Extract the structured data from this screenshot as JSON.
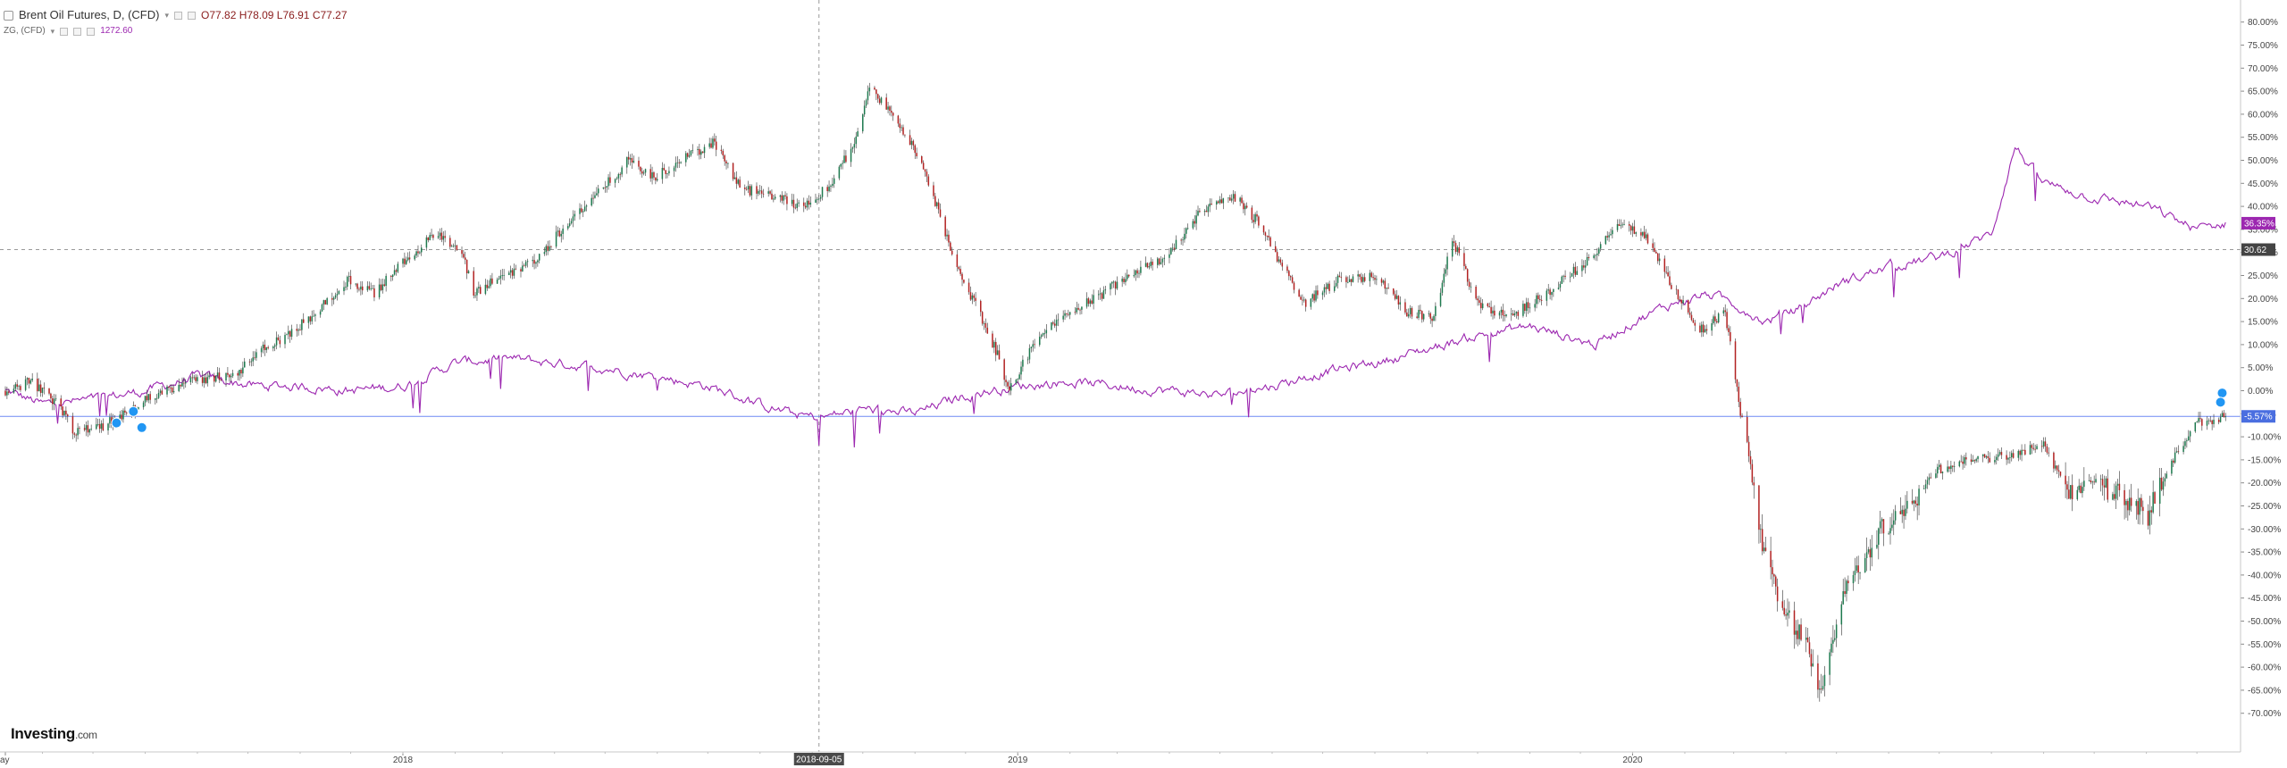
{
  "legend": {
    "instrument": "Brent Oil Futures, D, (CFD)",
    "open_label": "O",
    "open": "77.82",
    "high_label": "H",
    "high": "78.09",
    "low_label": "L",
    "low": "76.91",
    "close_label": "C",
    "close": "77.27",
    "overlay_name": "ZG, (CFD)",
    "overlay_value": "1272.60"
  },
  "logo": {
    "brand": "Investing",
    "domain": ".com"
  },
  "colors": {
    "up": "#26a69a",
    "up_dark": "#1f7a4f",
    "down": "#b22222",
    "overlay": "#9c27b0",
    "price_line": "#4b6cf0",
    "crosshair_label_bg": "#4a4a4a",
    "badge_overlay": "#9c27b0",
    "badge_price": "#4a6ee0",
    "badge_crosshair": "#444444"
  },
  "chart_data": {
    "type": "line",
    "y_unit": "%",
    "ylim": [
      -75,
      85
    ],
    "y_ticks": [
      "80.00%",
      "75.00%",
      "70.00%",
      "65.00%",
      "60.00%",
      "55.00%",
      "50.00%",
      "45.00%",
      "40.00%",
      "35.00%",
      "30.00%",
      "25.00%",
      "20.00%",
      "15.00%",
      "10.00%",
      "5.00%",
      "0.00%",
      "-5.00%",
      "-10.00%",
      "-15.00%",
      "-20.00%",
      "-25.00%",
      "-30.00%",
      "-35.00%",
      "-40.00%",
      "-45.00%",
      "-50.00%",
      "-55.00%",
      "-60.00%",
      "-65.00%",
      "-70.00%"
    ],
    "x_ticks": [
      "ay",
      "2018",
      "2019",
      "2020"
    ],
    "x_tick_dates": [
      "2017-05-10",
      "2018-01-01",
      "2019-01-01",
      "2020-01-01"
    ],
    "x_range": [
      "2017-05-10",
      "2020-12-20"
    ],
    "series": [
      {
        "name": "Brent Oil Futures, D, (CFD)",
        "style": "candlestick",
        "points": [
          [
            "2017-05-10",
            0
          ],
          [
            "2017-05-25",
            2
          ],
          [
            "2017-06-10",
            -3
          ],
          [
            "2017-06-20",
            -9
          ],
          [
            "2017-07-05",
            -8
          ],
          [
            "2017-07-20",
            -5
          ],
          [
            "2017-08-10",
            0
          ],
          [
            "2017-08-30",
            2
          ],
          [
            "2017-09-25",
            4
          ],
          [
            "2017-10-10",
            9
          ],
          [
            "2017-10-25",
            12
          ],
          [
            "2017-11-10",
            17
          ],
          [
            "2017-11-30",
            24
          ],
          [
            "2017-12-15",
            21
          ],
          [
            "2018-01-01",
            28
          ],
          [
            "2018-01-20",
            34
          ],
          [
            "2018-02-05",
            30
          ],
          [
            "2018-02-12",
            21
          ],
          [
            "2018-03-01",
            25
          ],
          [
            "2018-03-20",
            28
          ],
          [
            "2018-04-10",
            37
          ],
          [
            "2018-04-25",
            42
          ],
          [
            "2018-05-15",
            50
          ],
          [
            "2018-05-30",
            46
          ],
          [
            "2018-06-15",
            50
          ],
          [
            "2018-07-05",
            54
          ],
          [
            "2018-07-20",
            44
          ],
          [
            "2018-08-10",
            42
          ],
          [
            "2018-08-25",
            40
          ],
          [
            "2018-09-10",
            44
          ],
          [
            "2018-09-25",
            53
          ],
          [
            "2018-10-05",
            66
          ],
          [
            "2018-10-20",
            59
          ],
          [
            "2018-11-05",
            50
          ],
          [
            "2018-11-20",
            33
          ],
          [
            "2018-12-05",
            20
          ],
          [
            "2018-12-20",
            8
          ],
          [
            "2018-12-27",
            0
          ],
          [
            "2019-01-10",
            10
          ],
          [
            "2019-01-30",
            17
          ],
          [
            "2019-02-20",
            21
          ],
          [
            "2019-03-10",
            26
          ],
          [
            "2019-03-30",
            29
          ],
          [
            "2019-04-20",
            39
          ],
          [
            "2019-05-10",
            42
          ],
          [
            "2019-05-25",
            36
          ],
          [
            "2019-06-10",
            25
          ],
          [
            "2019-06-20",
            19
          ],
          [
            "2019-07-10",
            24
          ],
          [
            "2019-08-01",
            25
          ],
          [
            "2019-08-20",
            17
          ],
          [
            "2019-09-05",
            16
          ],
          [
            "2019-09-16",
            33
          ],
          [
            "2019-10-01",
            19
          ],
          [
            "2019-10-20",
            16
          ],
          [
            "2019-11-10",
            21
          ],
          [
            "2019-12-01",
            27
          ],
          [
            "2019-12-25",
            36
          ],
          [
            "2020-01-08",
            34
          ],
          [
            "2020-01-25",
            22
          ],
          [
            "2020-02-10",
            13
          ],
          [
            "2020-02-25",
            17
          ],
          [
            "2020-03-05",
            -5
          ],
          [
            "2020-03-09",
            -12
          ],
          [
            "2020-03-20",
            -37
          ],
          [
            "2020-04-01",
            -48
          ],
          [
            "2020-04-15",
            -56
          ],
          [
            "2020-04-21",
            -65
          ],
          [
            "2020-05-05",
            -45
          ],
          [
            "2020-05-25",
            -31
          ],
          [
            "2020-06-10",
            -26
          ],
          [
            "2020-07-01",
            -17
          ],
          [
            "2020-07-20",
            -15
          ],
          [
            "2020-08-10",
            -14
          ],
          [
            "2020-09-01",
            -12
          ],
          [
            "2020-09-15",
            -22
          ],
          [
            "2020-10-01",
            -19
          ],
          [
            "2020-10-20",
            -24
          ],
          [
            "2020-11-02",
            -27
          ],
          [
            "2020-11-15",
            -16
          ],
          [
            "2020-12-01",
            -7
          ],
          [
            "2020-12-18",
            -5.57
          ]
        ]
      },
      {
        "name": "ZG, (CFD)",
        "style": "line",
        "points": [
          [
            "2017-05-10",
            0
          ],
          [
            "2017-06-01",
            -3
          ],
          [
            "2017-07-01",
            -2
          ],
          [
            "2017-08-01",
            0
          ],
          [
            "2017-09-01",
            3
          ],
          [
            "2017-09-20",
            2
          ],
          [
            "2017-10-05",
            1
          ],
          [
            "2017-11-01",
            1
          ],
          [
            "2017-12-01",
            0
          ],
          [
            "2018-01-01",
            1
          ],
          [
            "2018-02-01",
            6
          ],
          [
            "2018-03-01",
            7
          ],
          [
            "2018-04-01",
            6
          ],
          [
            "2018-05-01",
            5
          ],
          [
            "2018-06-01",
            3
          ],
          [
            "2018-07-01",
            1
          ],
          [
            "2018-08-01",
            -3
          ],
          [
            "2018-08-20",
            -5
          ],
          [
            "2018-09-05",
            -6
          ],
          [
            "2018-10-01",
            -4
          ],
          [
            "2018-11-01",
            -5
          ],
          [
            "2018-12-01",
            -1
          ],
          [
            "2019-01-01",
            1
          ],
          [
            "2019-02-01",
            2
          ],
          [
            "2019-03-01",
            1
          ],
          [
            "2019-04-01",
            0
          ],
          [
            "2019-05-01",
            -1
          ],
          [
            "2019-06-01",
            1
          ],
          [
            "2019-07-01",
            4
          ],
          [
            "2019-08-01",
            6
          ],
          [
            "2019-09-01",
            9
          ],
          [
            "2019-10-01",
            12
          ],
          [
            "2019-11-01",
            14
          ],
          [
            "2019-11-20",
            12
          ],
          [
            "2019-12-10",
            10
          ],
          [
            "2020-01-01",
            15
          ],
          [
            "2020-01-25",
            19
          ],
          [
            "2020-02-15",
            21
          ],
          [
            "2020-03-01",
            19
          ],
          [
            "2020-03-20",
            15
          ],
          [
            "2020-04-10",
            18
          ],
          [
            "2020-05-01",
            23
          ],
          [
            "2020-06-01",
            27
          ],
          [
            "2020-07-01",
            29
          ],
          [
            "2020-08-01",
            34
          ],
          [
            "2020-08-15",
            53
          ],
          [
            "2020-09-01",
            45
          ],
          [
            "2020-10-01",
            42
          ],
          [
            "2020-11-01",
            40
          ],
          [
            "2020-12-01",
            35
          ],
          [
            "2020-12-18",
            36.35
          ]
        ]
      }
    ],
    "current_labels": {
      "overlay": "36.35%",
      "price": "-5.57%",
      "crosshair_y": "30.62",
      "crosshair_x": "2018-09-05"
    },
    "crosshair": {
      "date": "2018-09-05",
      "y": 30.62
    },
    "price_line_value": -5.57,
    "grid": false,
    "legend": "top-left"
  }
}
